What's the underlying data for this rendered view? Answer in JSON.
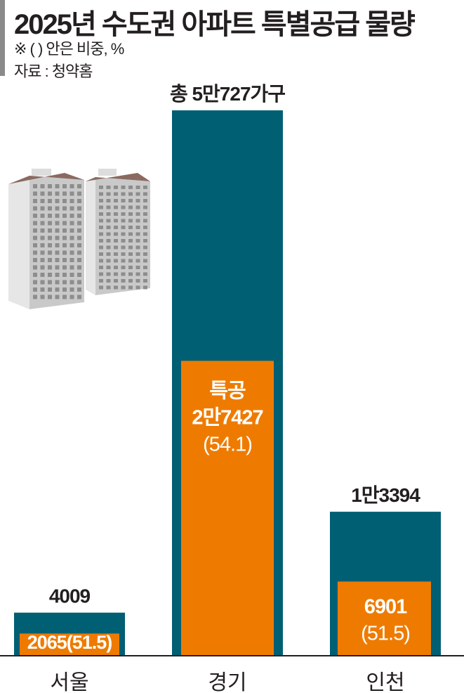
{
  "header": {
    "title": "2025년 수도권 아파트 특별공급 물량",
    "note": "※ (  ) 안은 비중, %",
    "source": "자료 : 청약홈"
  },
  "chart_data": {
    "type": "bar",
    "title": "2025년 수도권 아파트 특별공급 물량",
    "categories": [
      "서울",
      "경기",
      "인천"
    ],
    "series": [
      {
        "name": "",
        "values": [
          4009,
          50727,
          13394
        ]
      },
      {
        "name": "특공",
        "values": [
          2065,
          27427,
          6901
        ]
      }
    ],
    "share_percent": [
      51.5,
      54.1,
      51.5
    ],
    "total_labels": [
      "4009",
      "총 5만727가구",
      "1만3394"
    ],
    "special_labels": [
      [
        "2065(51.5)"
      ],
      [
        "특공",
        "2만7427",
        "(54.1)"
      ],
      [
        "6901",
        "(51.5)"
      ]
    ],
    "ylim": [
      0,
      50727
    ],
    "grid": false,
    "colors": {
      "total": "#005f73",
      "special": "#ee7b00",
      "text": "#231f20"
    }
  }
}
